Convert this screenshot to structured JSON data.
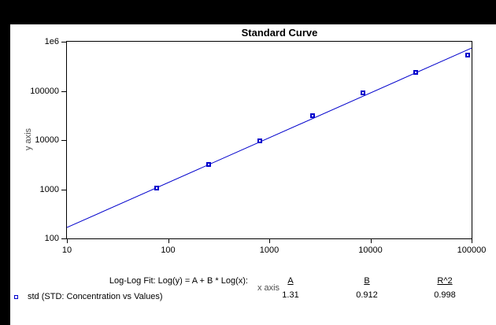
{
  "window": {
    "background_color": "#000000",
    "plot_background_color": "#ffffff"
  },
  "colors": {
    "series_blue": "#0000CC",
    "axis_label_gray": "#4d4d4d",
    "text_black": "#000000"
  },
  "chart_data": {
    "type": "scatter",
    "title": "Standard Curve",
    "xlabel": "x axis",
    "ylabel": "y axis",
    "x_scale": "log",
    "y_scale": "log",
    "xlim": [
      10,
      100000
    ],
    "ylim": [
      100,
      1000000
    ],
    "x_ticks": [
      10,
      100,
      1000,
      10000,
      100000
    ],
    "x_tick_labels": [
      "10",
      "100",
      "1000",
      "10000",
      "100000"
    ],
    "y_ticks": [
      100,
      1000,
      10000,
      100000,
      1000000
    ],
    "y_tick_labels": [
      "100",
      "1000",
      "10000",
      "100000",
      "1e6"
    ],
    "grid": false,
    "series": [
      {
        "name": "std",
        "marker": "open-square",
        "color": "#0000CC",
        "x": [
          77,
          250,
          810,
          2700,
          8400,
          28000,
          91000
        ],
        "y": [
          1050,
          3200,
          9700,
          31000,
          91000,
          240000,
          535000
        ]
      }
    ],
    "fit": {
      "type": "log-log linear",
      "equation": "Log(y) = A + B * Log(x)",
      "A": 1.31,
      "B": 0.912,
      "R2": 0.998,
      "color": "#0000CC"
    }
  },
  "footer": {
    "fit_label": "Log-Log Fit: Log(y) = A + B * Log(x):",
    "col_A_header": "A",
    "col_B_header": "B",
    "col_R2_header": "R^2",
    "A_value": "1.31",
    "B_value": "0.912",
    "R2_value": "0.998",
    "legend_label": "std (STD: Concentration vs Values)"
  }
}
